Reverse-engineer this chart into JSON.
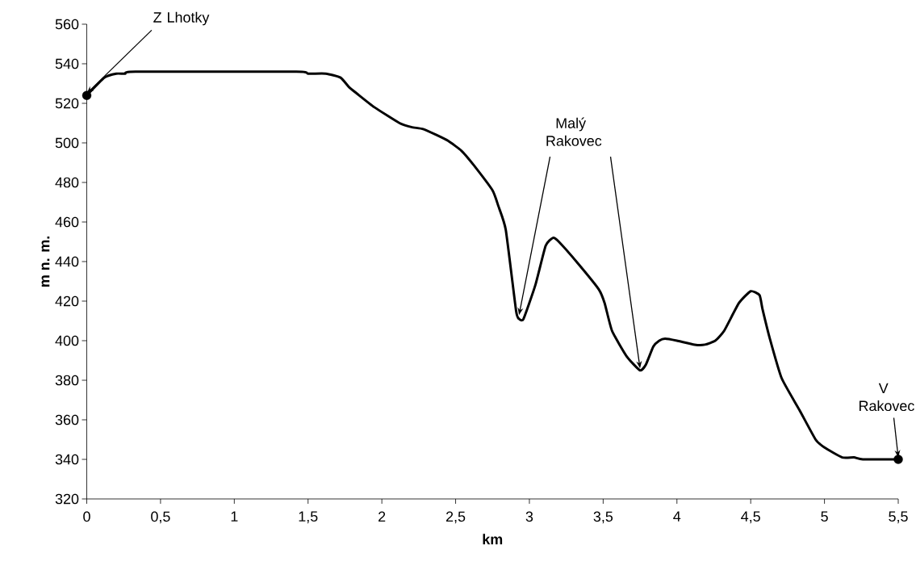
{
  "chart_data": {
    "type": "line",
    "xlabel": "km",
    "ylabel": "m n. m.",
    "xlim": [
      0,
      5.5
    ],
    "ylim": [
      320,
      560
    ],
    "xticks": [
      0,
      {
        "value": 0.5,
        "label": "0,5"
      },
      1,
      {
        "value": 1.5,
        "label": "1,5"
      },
      2,
      {
        "value": 2.5,
        "label": "2,5"
      },
      3,
      {
        "value": 3.5,
        "label": "3,5"
      },
      4,
      {
        "value": 4.5,
        "label": "4,5"
      },
      5,
      {
        "value": 5.5,
        "label": "5,5"
      }
    ],
    "yticks": [
      320,
      340,
      360,
      380,
      400,
      420,
      440,
      460,
      480,
      500,
      520,
      540,
      560
    ],
    "grid": false,
    "series": [
      {
        "color": "#000000",
        "marker": "none",
        "x": [
          0,
          0.12,
          0.2,
          0.26,
          0.33,
          1.42,
          1.5,
          1.62,
          1.72,
          1.78,
          1.83,
          1.95,
          2.12,
          2.2,
          2.28,
          2.37,
          2.45,
          2.54,
          2.62,
          2.75,
          2.79,
          2.84,
          2.91,
          2.93,
          2.96,
          3.04,
          3.11,
          3.16,
          3.2,
          3.33,
          3.47,
          3.51,
          3.56,
          3.66,
          3.75,
          3.79,
          3.84,
          3.88,
          3.92,
          4.0,
          4.12,
          4.19,
          4.26,
          4.32,
          4.42,
          4.5,
          4.56,
          4.58,
          4.63,
          4.71,
          4.83,
          4.94,
          5.0,
          5.12,
          5.2,
          5.26,
          5.5
        ],
        "values": [
          524,
          533,
          535,
          535,
          536,
          536,
          535,
          535,
          533,
          528,
          525,
          518,
          510,
          508,
          507,
          504,
          501,
          496,
          489,
          476,
          468,
          456,
          415,
          411,
          411,
          428,
          448,
          452,
          450,
          439,
          426,
          419,
          405,
          392,
          385,
          388,
          397,
          400,
          401,
          400,
          398,
          398,
          400,
          405,
          419,
          425,
          423,
          416,
          401,
          381,
          365,
          350,
          346,
          341,
          341,
          340,
          340
        ]
      },
      {
        "type": "scatter",
        "color": "#000000",
        "marker": "circle",
        "x": [
          0,
          5.5
        ],
        "values": [
          524,
          340
        ]
      }
    ],
    "annotations": [
      {
        "text": "Z  Lhotky",
        "x": 0,
        "y": 524
      },
      {
        "text": "Malý Rakovec",
        "x": 3.75,
        "y": 385
      },
      {
        "text": "V Rakovec",
        "x": 5.5,
        "y": 340
      }
    ]
  }
}
